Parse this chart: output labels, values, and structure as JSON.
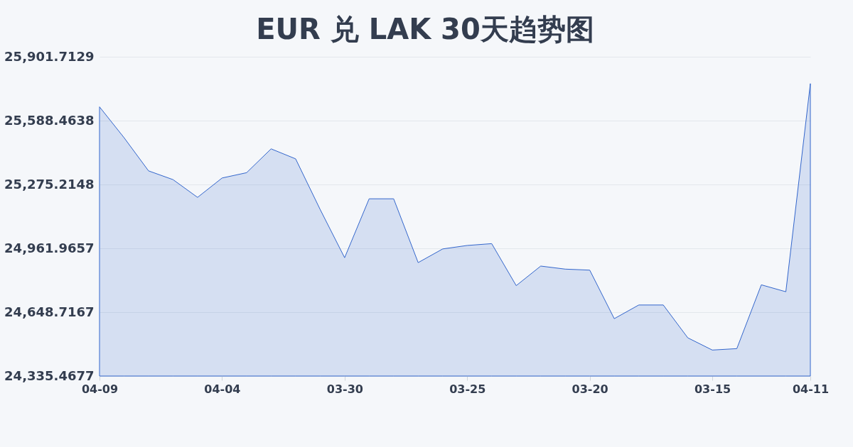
{
  "chart_data": {
    "type": "area",
    "title": "EUR 兑 LAK 30天趋势图",
    "categories": [
      "04-09",
      null,
      null,
      null,
      null,
      "04-04",
      null,
      null,
      null,
      null,
      "03-30",
      null,
      null,
      null,
      null,
      "03-25",
      null,
      null,
      null,
      null,
      "03-20",
      null,
      null,
      null,
      null,
      "03-15",
      null,
      null,
      null,
      "04-11"
    ],
    "values": [
      25656,
      25505,
      25342,
      25299,
      25212,
      25307,
      25333,
      25450,
      25401,
      25153,
      24916,
      25205,
      25205,
      24892,
      24959,
      24976,
      24985,
      24779,
      24875,
      24860,
      24855,
      24617,
      24684,
      24684,
      24523,
      24463,
      24470,
      24783,
      24749,
      25770
    ],
    "color": "#3366cc",
    "ylim": [
      24335.4677,
      25901.7129
    ],
    "yticks": [
      {
        "value": 24335.4677,
        "label": "24,335.4677"
      },
      {
        "value": 24648.7167,
        "label": "24,648.7167"
      },
      {
        "value": 24961.9657,
        "label": "24,961.9657"
      },
      {
        "value": 25275.2148,
        "label": "25,275.2148"
      },
      {
        "value": 25588.4638,
        "label": "25,588.4638"
      },
      {
        "value": 25901.7129,
        "label": "25,901.7129"
      }
    ],
    "grid": "y"
  }
}
